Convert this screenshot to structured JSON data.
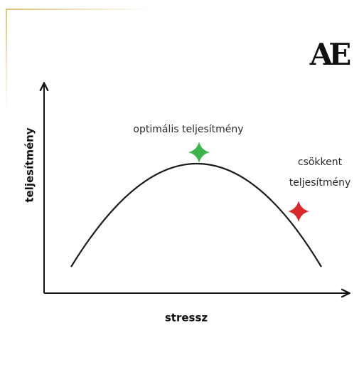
{
  "logo": "AE",
  "annotations": {
    "optimal": "optimális teljesítmény",
    "reduced": [
      "csökkent",
      "teljesítmény"
    ]
  },
  "axes": {
    "y_label": "teljesítmény",
    "x_label": "stressz"
  }
}
